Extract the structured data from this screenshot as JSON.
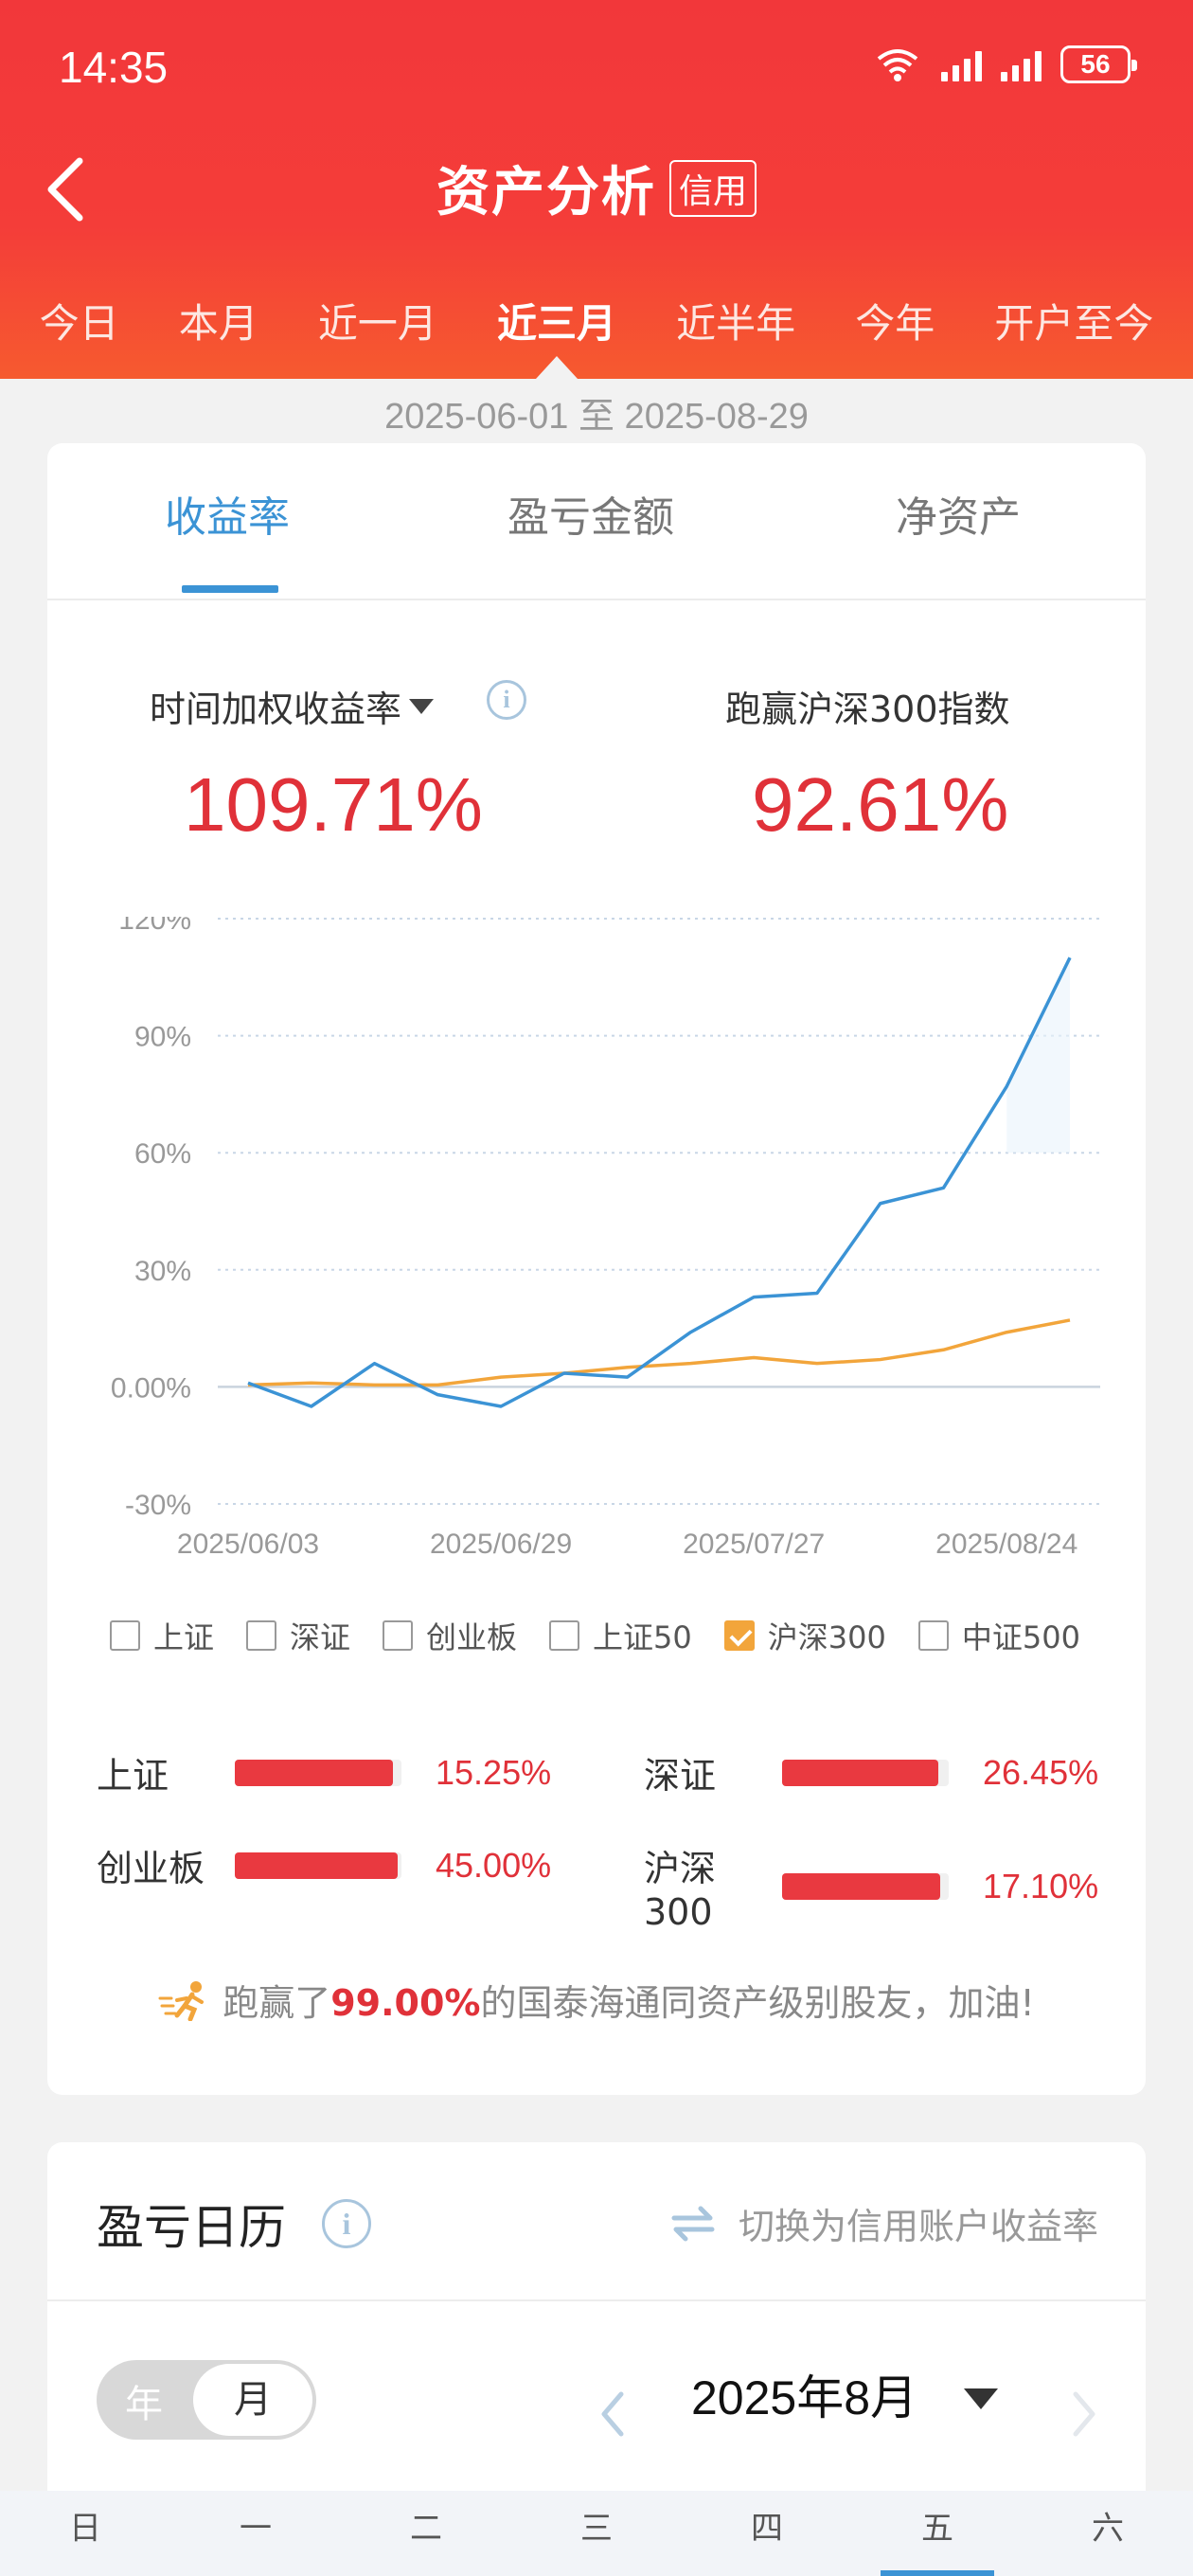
{
  "status_bar": {
    "time": "14:35",
    "battery": "56"
  },
  "header": {
    "title": "资产分析",
    "badge": "信用"
  },
  "period_tabs": [
    {
      "label": "今日"
    },
    {
      "label": "本月"
    },
    {
      "label": "近一月"
    },
    {
      "label": "近三月",
      "active": true
    },
    {
      "label": "近半年"
    },
    {
      "label": "今年"
    },
    {
      "label": "开户至今"
    }
  ],
  "date_range": "2025-06-01 至 2025-08-29",
  "metric_tabs": [
    {
      "label": "收益率",
      "active": true
    },
    {
      "label": "盈亏金额"
    },
    {
      "label": "净资产"
    }
  ],
  "kpis": {
    "left_label": "时间加权收益率",
    "left_value": "109.71%",
    "right_label": "跑赢沪深300指数",
    "right_value": "92.61%"
  },
  "chart_data": {
    "type": "line",
    "y_tick_labels": [
      "120%",
      "90%",
      "60%",
      "30%",
      "0.00%",
      "-30%"
    ],
    "ylim": [
      -30,
      120
    ],
    "x_tick_labels": [
      "2025/06/03",
      "2025/06/29",
      "2025/07/27",
      "2025/08/24"
    ],
    "x": [
      0,
      1,
      2,
      3,
      4,
      5,
      6,
      7,
      8,
      9,
      10,
      11,
      12,
      13
    ],
    "xlim": [
      0,
      13
    ],
    "series": [
      {
        "color": "#3b93d5",
        "values": [
          1,
          -5,
          6,
          -2,
          -5,
          3.5,
          2.5,
          14,
          23,
          24,
          47,
          51,
          77,
          110
        ]
      },
      {
        "color": "#f2a53b",
        "values": [
          0.5,
          1,
          0.5,
          0.5,
          2.5,
          3.5,
          5,
          6,
          7.5,
          6,
          7,
          9.5,
          14,
          17.1
        ]
      }
    ],
    "grid": true
  },
  "legend": [
    {
      "label": "上证",
      "checked": false
    },
    {
      "label": "深证",
      "checked": false
    },
    {
      "label": "创业板",
      "checked": false
    },
    {
      "label": "上证50",
      "checked": false
    },
    {
      "label": "沪深300",
      "checked": true
    },
    {
      "label": "中证500",
      "checked": false
    }
  ],
  "indices": [
    {
      "name": "上证",
      "value": "15.25%",
      "fill": 0.95
    },
    {
      "name": "深证",
      "value": "26.45%",
      "fill": 0.94
    },
    {
      "name": "创业板",
      "value": "45.00%",
      "fill": 0.98
    },
    {
      "name": "沪深300",
      "value": "17.10%",
      "fill": 0.95
    }
  ],
  "beat": {
    "prefix": "跑赢了",
    "percent": "99.00%",
    "suffix": "的国泰海通同资产级别股友，加油!"
  },
  "calendar": {
    "title": "盈亏日历",
    "switch_label": "切换为信用账户收益率",
    "seg_year": "年",
    "seg_month": "月",
    "month": "2025年8月",
    "weekdays": [
      "日",
      "一",
      "二",
      "三",
      "四",
      "五",
      "六"
    ],
    "selected_weekday": 5
  }
}
